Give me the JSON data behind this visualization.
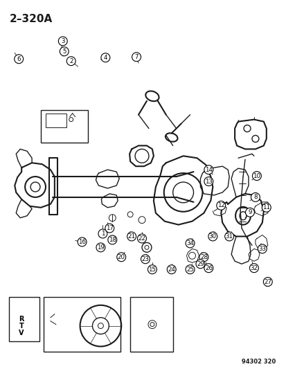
{
  "title": "2–320A",
  "catalog_number": "94302 320",
  "background_color": "#ffffff",
  "line_color": "#1a1a1a",
  "title_fontsize": 11,
  "figsize": [
    4.14,
    5.33
  ],
  "dpi": 100,
  "circles": [
    [
      1,
      148,
      338
    ],
    [
      2,
      102,
      87
    ],
    [
      3,
      90,
      58
    ],
    [
      4,
      152,
      82
    ],
    [
      5,
      92,
      73
    ],
    [
      6,
      26,
      84
    ],
    [
      7,
      197,
      81
    ],
    [
      8,
      370,
      285
    ],
    [
      9,
      362,
      307
    ],
    [
      10,
      372,
      254
    ],
    [
      11,
      386,
      300
    ],
    [
      12,
      320,
      297
    ],
    [
      13,
      302,
      262
    ],
    [
      14,
      302,
      245
    ],
    [
      15,
      220,
      390
    ],
    [
      16,
      118,
      350
    ],
    [
      17,
      158,
      330
    ],
    [
      18,
      162,
      347
    ],
    [
      19,
      145,
      358
    ],
    [
      20,
      175,
      372
    ],
    [
      21,
      190,
      342
    ],
    [
      22,
      205,
      345
    ],
    [
      23,
      210,
      375
    ],
    [
      24,
      248,
      390
    ],
    [
      25,
      275,
      390
    ],
    [
      26,
      302,
      388
    ],
    [
      27,
      388,
      408
    ],
    [
      28,
      295,
      372
    ],
    [
      29,
      290,
      382
    ],
    [
      30,
      308,
      342
    ],
    [
      31,
      332,
      342
    ],
    [
      32,
      368,
      388
    ],
    [
      33,
      380,
      360
    ],
    [
      34,
      275,
      352
    ]
  ]
}
